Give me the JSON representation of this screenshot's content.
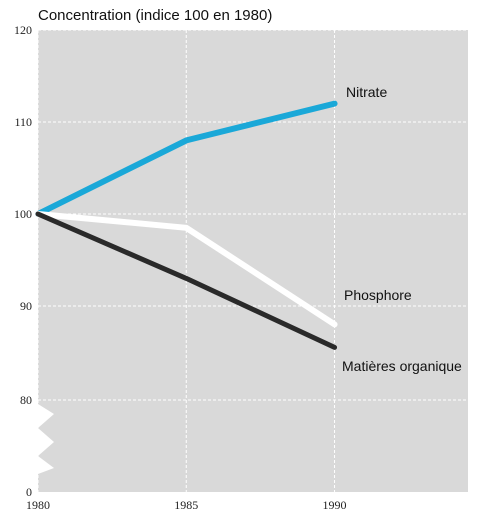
{
  "chart_data": {
    "type": "line",
    "title": "Concentration (indice 100 en 1980)",
    "xlabel": "",
    "ylabel": "",
    "x": [
      1980,
      1985,
      1990
    ],
    "x_ticks": [
      "1980",
      "1985",
      "1990"
    ],
    "xlim": [
      1980,
      1994.5
    ],
    "y_ticks": [
      "0",
      "80",
      "90",
      "100",
      "110",
      "120"
    ],
    "ylim_display": [
      80,
      120
    ],
    "axis_break": true,
    "grid": true,
    "background": "#d9d9d9",
    "series": [
      {
        "name": "Nitrate",
        "values": [
          100,
          108,
          112
        ],
        "color": "#1aa8d8"
      },
      {
        "name": "Phosphore",
        "values": [
          100,
          98.5,
          88
        ],
        "color": "#ffffff"
      },
      {
        "name": "Matières organique",
        "values": [
          100,
          93,
          85.5
        ],
        "color": "#2a2a2a"
      }
    ]
  }
}
